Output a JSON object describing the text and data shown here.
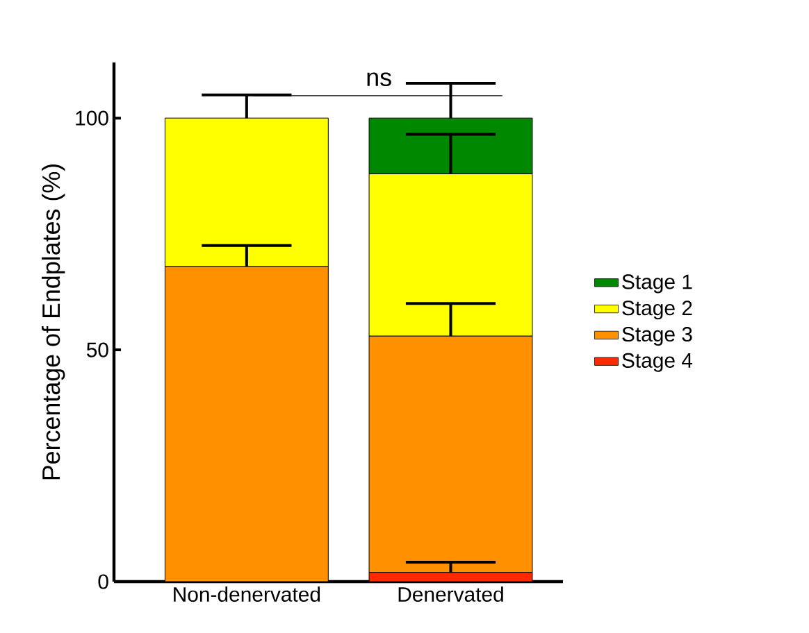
{
  "chart_data": {
    "type": "bar",
    "stacked": true,
    "ylabel": "Percentage of Endplates (%)",
    "categories": [
      "Non-denervated",
      "Denervated"
    ],
    "series": [
      {
        "name": "Stage 4",
        "color": "#ff2a00",
        "values": [
          null,
          2
        ],
        "errors": [
          null,
          [
            2,
            4.2
          ]
        ]
      },
      {
        "name": "Stage 3",
        "color": "#ff9000",
        "values": [
          68,
          51
        ],
        "errors": [
          [
            68,
            72.5
          ],
          [
            53,
            60
          ]
        ]
      },
      {
        "name": "Stage 2",
        "color": "#ffff00",
        "values": [
          32,
          35
        ],
        "errors": [
          [
            100,
            105
          ],
          [
            88,
            96.5
          ]
        ]
      },
      {
        "name": "Stage 1",
        "color": "#008800",
        "values": [
          null,
          12
        ],
        "errors": [
          null,
          [
            100,
            107.5
          ]
        ]
      }
    ],
    "ylim": [
      0,
      112
    ],
    "yticks": [
      0,
      50,
      100
    ],
    "annotations": [
      "ns"
    ],
    "legend": "right",
    "grid": false
  }
}
